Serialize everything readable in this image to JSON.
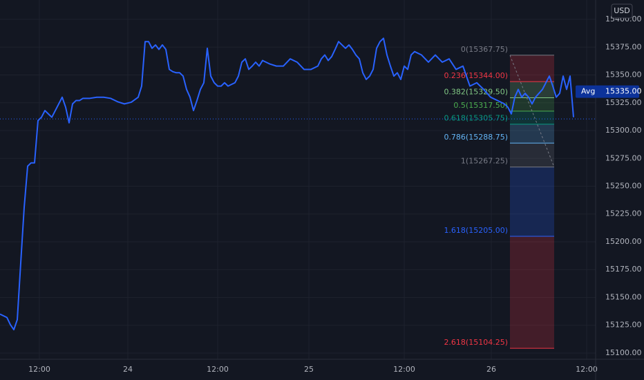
{
  "chart_data": {
    "type": "line",
    "currency": "USD",
    "x": [
      0,
      2,
      3,
      4,
      5,
      6,
      7,
      8,
      9,
      10,
      11,
      12,
      13,
      14,
      15,
      16,
      17,
      18,
      19,
      20,
      21,
      22,
      23,
      24,
      26,
      28,
      30,
      32,
      34,
      36,
      38,
      40,
      41,
      42,
      43,
      44,
      45,
      46,
      47,
      48,
      49,
      50,
      51,
      52,
      53,
      54,
      55,
      56,
      57,
      58,
      59,
      60,
      61,
      62,
      63,
      64,
      65,
      66,
      68,
      69,
      70,
      71,
      72,
      73,
      74,
      75,
      76,
      78,
      80,
      82,
      84,
      86,
      88,
      90,
      92,
      93,
      94,
      95,
      96,
      97,
      98,
      99,
      100,
      101,
      102,
      103,
      104,
      105,
      106,
      107,
      108,
      109,
      110,
      111,
      112,
      113,
      114,
      115,
      116,
      117,
      118,
      119,
      120,
      122,
      124,
      126,
      128,
      130,
      132,
      134,
      135,
      136,
      138,
      140,
      142,
      144,
      146,
      147,
      148,
      149,
      150,
      151,
      152,
      153,
      154,
      155,
      156,
      157,
      158,
      159,
      160,
      161,
      162,
      163,
      164,
      165,
      166
    ],
    "series": [
      {
        "color": "#2962ff",
        "values": [
          15135,
          15132,
          15125.5,
          15121,
          15130,
          15181,
          15231,
          15268,
          15271,
          15271,
          15309,
          15312,
          15318,
          15315,
          15312,
          15318,
          15324,
          15330,
          15321,
          15307,
          15324,
          15327,
          15327,
          15329,
          15329,
          15330,
          15330,
          15329,
          15326,
          15324,
          15325.5,
          15330,
          15340,
          15380,
          15380,
          15374,
          15377,
          15373,
          15377,
          15373,
          15355,
          15353,
          15352,
          15352,
          15349,
          15337,
          15330,
          15318,
          15327,
          15337,
          15343,
          15374,
          15349,
          15343,
          15340,
          15340,
          15343,
          15340,
          15343,
          15349,
          15361.5,
          15364.5,
          15355,
          15358,
          15361.5,
          15358,
          15363,
          15360,
          15358,
          15358,
          15364.5,
          15361.5,
          15355,
          15355,
          15358,
          15364.5,
          15368,
          15363,
          15366.5,
          15373,
          15380,
          15377,
          15374,
          15377,
          15373,
          15368,
          15364.5,
          15352,
          15346,
          15349,
          15355,
          15374,
          15380,
          15383,
          15368,
          15358,
          15349,
          15352,
          15346,
          15358,
          15355,
          15368,
          15371,
          15368,
          15361.5,
          15368,
          15361.5,
          15364.5,
          15355,
          15358,
          15349,
          15340,
          15343,
          15337,
          15330,
          15327,
          15324,
          15321,
          15315,
          15330,
          15337,
          15330,
          15333.5,
          15330,
          15324,
          15330,
          15333.5,
          15337,
          15343,
          15349,
          15340,
          15330,
          15333.5,
          15349,
          15337,
          15349,
          15312
        ]
      }
    ],
    "xlim": [
      0,
      172.4
    ],
    "xticks": [
      {
        "value": 11.4,
        "label": "12:00"
      },
      {
        "value": 37,
        "label": "24"
      },
      {
        "value": 63,
        "label": "12:00"
      },
      {
        "value": 89.4,
        "label": "25"
      },
      {
        "value": 117,
        "label": "12:00"
      },
      {
        "value": 142.2,
        "label": "26"
      },
      {
        "value": 169.8,
        "label": "12:00"
      }
    ],
    "ylim": [
      15094.4,
      15417.4
    ],
    "yticks": [
      {
        "value": 15100,
        "label": "15100.00"
      },
      {
        "value": 15125,
        "label": "15125.00"
      },
      {
        "value": 15150,
        "label": "15150.00"
      },
      {
        "value": 15175,
        "label": "15175.00"
      },
      {
        "value": 15200,
        "label": "15200.00"
      },
      {
        "value": 15225,
        "label": "15225.00"
      },
      {
        "value": 15250,
        "label": "15250.00"
      },
      {
        "value": 15275,
        "label": "15275.00"
      },
      {
        "value": 15300,
        "label": "15300.00"
      },
      {
        "value": 15325,
        "label": "15325.00"
      },
      {
        "value": 15350,
        "label": "15350.00"
      },
      {
        "value": 15375,
        "label": "15375.00"
      },
      {
        "value": 15400,
        "label": "15400.00"
      }
    ],
    "grid": true,
    "last_price": 15310.5,
    "avg": {
      "label": "Avg",
      "value": 15335,
      "value_label": "15335.00",
      "color": "#0c3299"
    },
    "fib_levels": [
      {
        "label": "0(15367.75)",
        "value": 15367.75,
        "color": "#787b86"
      },
      {
        "label": "0.236(15344.00)",
        "value": 15344,
        "color": "#f23645"
      },
      {
        "label": "0.382(15329.50)",
        "value": 15329.5,
        "color": "#81c784"
      },
      {
        "label": "0.5(15317.50)",
        "value": 15317.5,
        "color": "#4caf50"
      },
      {
        "label": "0.618(15305.75)",
        "value": 15305.75,
        "color": "#089981"
      },
      {
        "label": "0.786(15288.75)",
        "value": 15288.75,
        "color": "#64b5f6"
      },
      {
        "label": "1(15267.25)",
        "value": 15267.25,
        "color": "#787b86"
      },
      {
        "label": "1.618(15205.00)",
        "value": 15205,
        "color": "#2962ff"
      },
      {
        "label": "2.618(15104.25)",
        "value": 15104.25,
        "color": "#f23645"
      }
    ]
  }
}
